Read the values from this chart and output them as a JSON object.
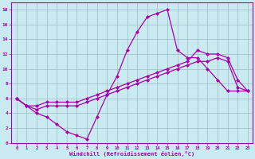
{
  "xlabel": "Windchill (Refroidissement éolien,°C)",
  "xlim": [
    -0.5,
    23.5
  ],
  "ylim": [
    0,
    19
  ],
  "xticks": [
    0,
    1,
    2,
    3,
    4,
    5,
    6,
    7,
    8,
    9,
    10,
    11,
    12,
    13,
    14,
    15,
    16,
    17,
    18,
    19,
    20,
    21,
    22,
    23
  ],
  "yticks": [
    0,
    2,
    4,
    6,
    8,
    10,
    12,
    14,
    16,
    18
  ],
  "bg_color": "#c8eaf0",
  "grid_color": "#9bbfbf",
  "line_color": "#aa00aa",
  "line1_x": [
    0,
    1,
    2,
    3,
    4,
    5,
    6,
    7,
    8,
    9,
    10,
    11,
    12,
    13,
    14,
    15,
    16,
    17,
    18,
    19,
    20,
    21,
    22,
    23
  ],
  "line1_y": [
    6.0,
    5.0,
    4.0,
    3.5,
    2.5,
    1.5,
    1.0,
    0.5,
    3.5,
    6.5,
    9.0,
    12.5,
    15.0,
    17.0,
    17.5,
    18.0,
    12.5,
    11.5,
    11.5,
    10.0,
    8.5,
    7.0,
    7.0,
    7.0
  ],
  "line2_x": [
    0,
    1,
    2,
    3,
    4,
    5,
    6,
    7,
    8,
    9,
    10,
    11,
    12,
    13,
    14,
    15,
    16,
    17,
    18,
    19,
    20,
    21,
    22,
    23
  ],
  "line2_y": [
    6.0,
    5.0,
    5.0,
    5.5,
    5.5,
    5.5,
    5.5,
    6.0,
    6.5,
    7.0,
    7.5,
    8.0,
    8.5,
    9.0,
    9.5,
    10.0,
    10.5,
    11.0,
    12.5,
    12.0,
    12.0,
    11.5,
    8.5,
    7.0
  ],
  "line3_x": [
    0,
    1,
    2,
    3,
    4,
    5,
    6,
    7,
    8,
    9,
    10,
    11,
    12,
    13,
    14,
    15,
    16,
    17,
    18,
    19,
    20,
    21,
    22,
    23
  ],
  "line3_y": [
    6.0,
    5.0,
    4.5,
    5.0,
    5.0,
    5.0,
    5.0,
    5.5,
    6.0,
    6.5,
    7.0,
    7.5,
    8.0,
    8.5,
    9.0,
    9.5,
    10.0,
    10.5,
    11.0,
    11.0,
    11.5,
    11.0,
    7.5,
    7.0
  ],
  "marker": "D",
  "marker_size": 2,
  "linewidth": 0.9
}
